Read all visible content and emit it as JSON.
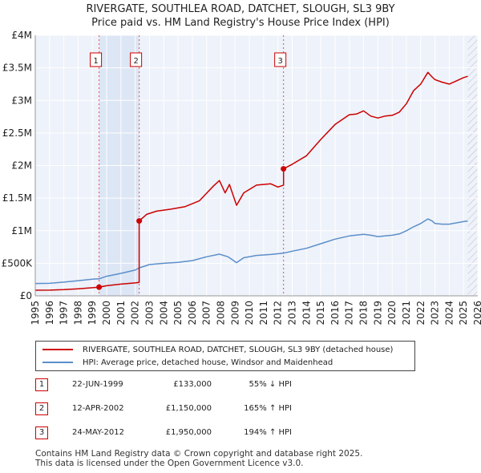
{
  "chart_data": {
    "type": "line",
    "title": "RIVERGATE, SOUTHLEA ROAD, DATCHET, SLOUGH, SL3 9BY",
    "subtitle": "Price paid vs. HM Land Registry's House Price Index (HPI)",
    "xlim": [
      1995,
      2026
    ],
    "ylim": [
      0,
      4000000
    ],
    "x_ticks": [
      "1995",
      "1996",
      "1997",
      "1998",
      "1999",
      "2000",
      "2001",
      "2002",
      "2003",
      "2004",
      "2005",
      "2006",
      "2007",
      "2008",
      "2009",
      "2010",
      "2011",
      "2012",
      "2013",
      "2014",
      "2015",
      "2016",
      "2017",
      "2018",
      "2019",
      "2020",
      "2021",
      "2022",
      "2023",
      "2024",
      "2025",
      "2026"
    ],
    "y_ticks": [
      {
        "value": 0,
        "label": "£0"
      },
      {
        "value": 500000,
        "label": "£500K"
      },
      {
        "value": 1000000,
        "label": "£1M"
      },
      {
        "value": 1500000,
        "label": "£1.5M"
      },
      {
        "value": 2000000,
        "label": "£2M"
      },
      {
        "value": 2500000,
        "label": "£2.5M"
      },
      {
        "value": 3000000,
        "label": "£3M"
      },
      {
        "value": 3500000,
        "label": "£3.5M"
      },
      {
        "value": 4000000,
        "label": "£4M"
      }
    ],
    "series": [
      {
        "name": "RIVERGATE, SOUTHLEA ROAD, DATCHET, SLOUGH, SL3 9BY (detached house)",
        "color": "#cc0000",
        "points": [
          [
            1995.0,
            86000
          ],
          [
            1996.0,
            87000
          ],
          [
            1997.0,
            95000
          ],
          [
            1998.0,
            108000
          ],
          [
            1999.0,
            124000
          ],
          [
            1999.47,
            133000
          ],
          [
            2000.0,
            155000
          ],
          [
            2001.0,
            180000
          ],
          [
            2002.0,
            198000
          ],
          [
            2002.28,
            205000
          ],
          [
            2002.28,
            1150000
          ],
          [
            2002.8,
            1250000
          ],
          [
            2003.5,
            1300000
          ],
          [
            2004.5,
            1330000
          ],
          [
            2005.5,
            1370000
          ],
          [
            2006.5,
            1460000
          ],
          [
            2007.5,
            1690000
          ],
          [
            2007.9,
            1770000
          ],
          [
            2008.3,
            1580000
          ],
          [
            2008.6,
            1710000
          ],
          [
            2009.1,
            1390000
          ],
          [
            2009.6,
            1580000
          ],
          [
            2010.5,
            1700000
          ],
          [
            2011.5,
            1720000
          ],
          [
            2012.0,
            1670000
          ],
          [
            2012.39,
            1700000
          ],
          [
            2012.39,
            1950000
          ],
          [
            2013.0,
            2020000
          ],
          [
            2014.0,
            2150000
          ],
          [
            2015.0,
            2400000
          ],
          [
            2016.0,
            2630000
          ],
          [
            2017.0,
            2780000
          ],
          [
            2017.5,
            2790000
          ],
          [
            2018.0,
            2840000
          ],
          [
            2018.5,
            2760000
          ],
          [
            2019.0,
            2730000
          ],
          [
            2019.5,
            2760000
          ],
          [
            2020.0,
            2770000
          ],
          [
            2020.5,
            2820000
          ],
          [
            2021.0,
            2950000
          ],
          [
            2021.5,
            3150000
          ],
          [
            2022.0,
            3250000
          ],
          [
            2022.5,
            3430000
          ],
          [
            2022.8,
            3360000
          ],
          [
            2023.0,
            3320000
          ],
          [
            2023.5,
            3280000
          ],
          [
            2024.0,
            3250000
          ],
          [
            2024.5,
            3300000
          ],
          [
            2025.0,
            3350000
          ],
          [
            2025.3,
            3370000
          ]
        ]
      },
      {
        "name": "HPI: Average price, detached house, Windsor and Maidenhead",
        "color": "#5b8fc9",
        "points": [
          [
            1995.0,
            190000
          ],
          [
            1996.0,
            192000
          ],
          [
            1997.0,
            210000
          ],
          [
            1998.0,
            232000
          ],
          [
            1999.0,
            255000
          ],
          [
            1999.47,
            261000
          ],
          [
            2000.0,
            300000
          ],
          [
            2001.0,
            345000
          ],
          [
            2002.0,
            395000
          ],
          [
            2002.28,
            430000
          ],
          [
            2003.0,
            480000
          ],
          [
            2004.0,
            500000
          ],
          [
            2005.0,
            515000
          ],
          [
            2006.0,
            540000
          ],
          [
            2007.0,
            600000
          ],
          [
            2007.9,
            640000
          ],
          [
            2008.5,
            600000
          ],
          [
            2009.1,
            510000
          ],
          [
            2009.6,
            585000
          ],
          [
            2010.5,
            620000
          ],
          [
            2011.5,
            635000
          ],
          [
            2012.39,
            655000
          ],
          [
            2013.0,
            685000
          ],
          [
            2014.0,
            730000
          ],
          [
            2015.0,
            800000
          ],
          [
            2016.0,
            870000
          ],
          [
            2017.0,
            920000
          ],
          [
            2018.0,
            945000
          ],
          [
            2018.5,
            930000
          ],
          [
            2019.0,
            910000
          ],
          [
            2019.5,
            920000
          ],
          [
            2020.0,
            930000
          ],
          [
            2020.5,
            950000
          ],
          [
            2021.0,
            1000000
          ],
          [
            2021.5,
            1060000
          ],
          [
            2022.0,
            1110000
          ],
          [
            2022.5,
            1180000
          ],
          [
            2022.8,
            1150000
          ],
          [
            2023.0,
            1110000
          ],
          [
            2023.5,
            1100000
          ],
          [
            2024.0,
            1100000
          ],
          [
            2024.5,
            1120000
          ],
          [
            2025.0,
            1140000
          ],
          [
            2025.3,
            1150000
          ]
        ]
      }
    ],
    "transactions": [
      {
        "label": "1",
        "date": "22-JUN-1999",
        "x": 1999.47,
        "price_value": 133000,
        "price": "£133,000",
        "hpi": "55% ↓ HPI"
      },
      {
        "label": "2",
        "date": "12-APR-2002",
        "x": 2002.28,
        "price_value": 1150000,
        "price": "£1,150,000",
        "hpi": "165% ↑ HPI"
      },
      {
        "label": "3",
        "date": "24-MAY-2012",
        "x": 2012.39,
        "price_value": 1950000,
        "price": "£1,950,000",
        "hpi": "194% ↑ HPI"
      }
    ],
    "forecast_start": 2025.3,
    "colors": {
      "grid": "#ffffff",
      "plot_bg": "#eef2fa",
      "shade": "#dde6f5",
      "marker": "#cc0000"
    }
  },
  "legend": {
    "property": "RIVERGATE, SOUTHLEA ROAD, DATCHET, SLOUGH, SL3 9BY (detached house)",
    "hpi": "HPI: Average price, detached house, Windsor and Maidenhead"
  },
  "footer": {
    "line1": "Contains HM Land Registry data © Crown copyright and database right 2025.",
    "line2": "This data is licensed under the Open Government Licence v3.0."
  }
}
